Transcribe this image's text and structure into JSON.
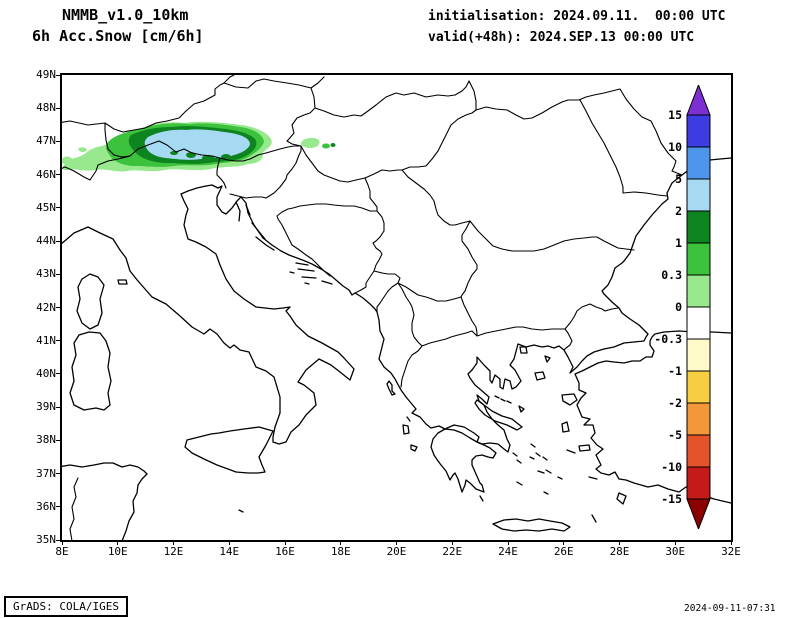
{
  "header": {
    "model": "NMMB_v1.0_10km",
    "variable": "6h Acc.Snow [cm/6h]",
    "initialisation": "initialisation: 2024.09.11.  00:00 UTC",
    "valid": "valid(+48h): 2024.SEP.13 00:00 UTC"
  },
  "map": {
    "lat_labels": [
      "49N",
      "48N",
      "47N",
      "46N",
      "45N",
      "44N",
      "43N",
      "42N",
      "41N",
      "40N",
      "39N",
      "38N",
      "37N",
      "36N",
      "35N"
    ],
    "lon_labels": [
      "8E",
      "10E",
      "12E",
      "14E",
      "16E",
      "18E",
      "20E",
      "22E",
      "24E",
      "26E",
      "28E",
      "30E",
      "32E"
    ]
  },
  "colorbar": {
    "labels": [
      "15",
      "10",
      "5",
      "2",
      "1",
      "0.3",
      "0",
      "-0.3",
      "-1",
      "-2",
      "-5",
      "-10",
      "-15"
    ],
    "segment_colors": [
      "#3C3CE0",
      "#4E96EC",
      "#A6D9F2",
      "#0E8420",
      "#3CC23C",
      "#98E88E",
      "#FFFFFF",
      "#FFF9C9",
      "#F6CE42",
      "#F2983A",
      "#E4542A",
      "#C41A1A"
    ],
    "arrow_top_color": "#7D2FD2",
    "arrow_bottom_color": "#8B0000"
  },
  "snow_colors": {
    "light_green": "#98E88E",
    "green": "#3CC23C",
    "dark_green": "#0E8420",
    "light_blue": "#A6D9F2"
  },
  "footer": {
    "left": "GrADS: COLA/IGES",
    "right": "2024-09-11-07:31"
  }
}
